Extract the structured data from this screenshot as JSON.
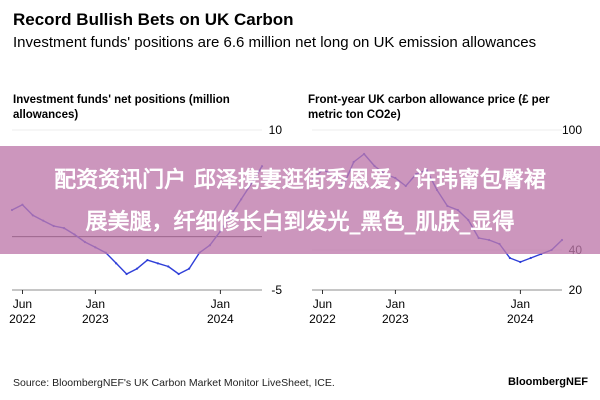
{
  "title": "Record Bullish Bets on UK Carbon",
  "subtitle": "Investment funds' positions are 6.6 million net long on UK emission allowances",
  "source": "Source: BloombergNEF's UK Carbon Market Monitor LiveSheet, ICE.",
  "brand": "BloombergNEF",
  "overlay": {
    "line1": "配资资讯门户 邱泽携妻逛街秀恩爱，许玮甯包臀裙",
    "line2": "展美腿，纤细修长白到发光_黑色_肌肤_显得",
    "color": "#be78aa"
  },
  "colors": {
    "series": "#2f3fd8",
    "zero_line": "#000000",
    "grid": "#d9d9d9"
  },
  "chart_data": [
    {
      "type": "line",
      "title": "Investment funds' net positions (million allowances)",
      "ylim": [
        -5,
        10
      ],
      "y_ticks": [
        -5,
        10
      ],
      "zero_line": true,
      "x_ticks": [
        {
          "x": "2022-06",
          "line1": "Jun",
          "line2": "2022"
        },
        {
          "x": "2023-01",
          "line1": "Jan",
          "line2": "2023"
        },
        {
          "x": "2024-01",
          "line1": "Jan",
          "line2": "2024"
        }
      ],
      "xlim": [
        "2022-05",
        "2024-05"
      ],
      "series": [
        {
          "x": [
            "2022-05",
            "2022-06",
            "2022-07",
            "2022-08",
            "2022-09",
            "2022-10",
            "2022-11",
            "2022-12",
            "2023-01",
            "2023-02",
            "2023-03",
            "2023-04",
            "2023-05",
            "2023-06",
            "2023-07",
            "2023-08",
            "2023-09",
            "2023-10",
            "2023-11",
            "2023-12",
            "2024-01",
            "2024-02",
            "2024-03",
            "2024-04",
            "2024-05"
          ],
          "values": [
            2.5,
            3.0,
            2.0,
            1.5,
            1.0,
            0.8,
            0.2,
            -0.5,
            -1.0,
            -1.5,
            -2.5,
            -3.5,
            -3.0,
            -2.2,
            -2.5,
            -2.8,
            -3.5,
            -3.0,
            -1.5,
            -0.8,
            0.5,
            2.0,
            3.5,
            5.0,
            6.6
          ]
        }
      ]
    },
    {
      "type": "line",
      "title": "Front-year UK carbon allowance price (£ per metric ton CO2e)",
      "ylim": [
        20,
        100
      ],
      "y_ticks": [
        20,
        40,
        100
      ],
      "zero_line": false,
      "x_ticks": [
        {
          "x": "2022-06",
          "line1": "Jun",
          "line2": "2022"
        },
        {
          "x": "2023-01",
          "line1": "Jan",
          "line2": "2023"
        },
        {
          "x": "2024-01",
          "line1": "Jan",
          "line2": "2024"
        }
      ],
      "xlim": [
        "2022-05",
        "2024-05"
      ],
      "series": [
        {
          "x": [
            "2022-05",
            "2022-06",
            "2022-07",
            "2022-08",
            "2022-09",
            "2022-10",
            "2022-11",
            "2022-12",
            "2023-01",
            "2023-02",
            "2023-03",
            "2023-04",
            "2023-05",
            "2023-06",
            "2023-07",
            "2023-08",
            "2023-09",
            "2023-10",
            "2023-11",
            "2023-12",
            "2024-01",
            "2024-02",
            "2024-03",
            "2024-04",
            "2024-05"
          ],
          "values": [
            75,
            80,
            78,
            72,
            84,
            88,
            82,
            78,
            76,
            72,
            78,
            80,
            70,
            62,
            60,
            55,
            46,
            45,
            43,
            36,
            34,
            36,
            38,
            40,
            45
          ]
        }
      ]
    }
  ]
}
